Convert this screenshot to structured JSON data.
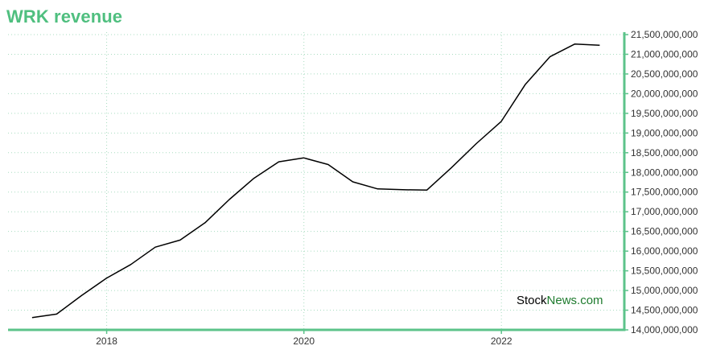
{
  "chart_data": {
    "type": "line",
    "title": "WRK revenue",
    "xlabel": "",
    "ylabel": "",
    "x": [
      "2017-03-31",
      "2017-06-30",
      "2017-09-30",
      "2017-12-31",
      "2018-03-31",
      "2018-06-30",
      "2018-09-30",
      "2018-12-31",
      "2019-03-31",
      "2019-06-30",
      "2019-09-30",
      "2019-12-31",
      "2020-03-31",
      "2020-06-30",
      "2020-09-30",
      "2020-12-31",
      "2021-03-31",
      "2021-06-30",
      "2021-09-30",
      "2021-12-31",
      "2022-03-31",
      "2022-06-30",
      "2022-09-30",
      "2022-12-31"
    ],
    "values": [
      14310000000,
      14400000000,
      14870000000,
      15310000000,
      15660000000,
      16100000000,
      16280000000,
      16720000000,
      17310000000,
      17850000000,
      18270000000,
      18370000000,
      18200000000,
      17760000000,
      17580000000,
      17560000000,
      17550000000,
      18120000000,
      18730000000,
      19290000000,
      20240000000,
      20940000000,
      21260000000,
      21230000000
    ],
    "ylim": [
      14000000000,
      21500000000
    ],
    "yticks": [
      14000000000,
      14500000000,
      15000000000,
      15500000000,
      16000000000,
      16500000000,
      17000000000,
      17500000000,
      18000000000,
      18500000000,
      19000000000,
      19500000000,
      20000000000,
      20500000000,
      21000000000,
      21500000000
    ],
    "ytick_labels": [
      "14,000,000,000",
      "14,500,000,000",
      "15,000,000,000",
      "15,500,000,000",
      "16,000,000,000",
      "16,500,000,000",
      "17,000,000,000",
      "17,500,000,000",
      "18,000,000,000",
      "18,500,000,000",
      "19,000,000,000",
      "19,500,000,000",
      "20,000,000,000",
      "20,500,000,000",
      "21,000,000,000",
      "21,500,000,000"
    ],
    "xticks": [
      "2018-01-01",
      "2020-01-01",
      "2022-01-01"
    ],
    "xtick_labels": [
      "2018",
      "2020",
      "2022"
    ],
    "xlim": [
      "2017-01-01",
      "2023-04-01"
    ],
    "grid": true,
    "y_axis_position": "right",
    "colors": {
      "line": "#000000",
      "axis": "#5cc38a",
      "grid": "#a8dcc0",
      "title": "#4fbf7f"
    }
  },
  "branding": {
    "part1": "Stock",
    "part2": "News.com"
  }
}
